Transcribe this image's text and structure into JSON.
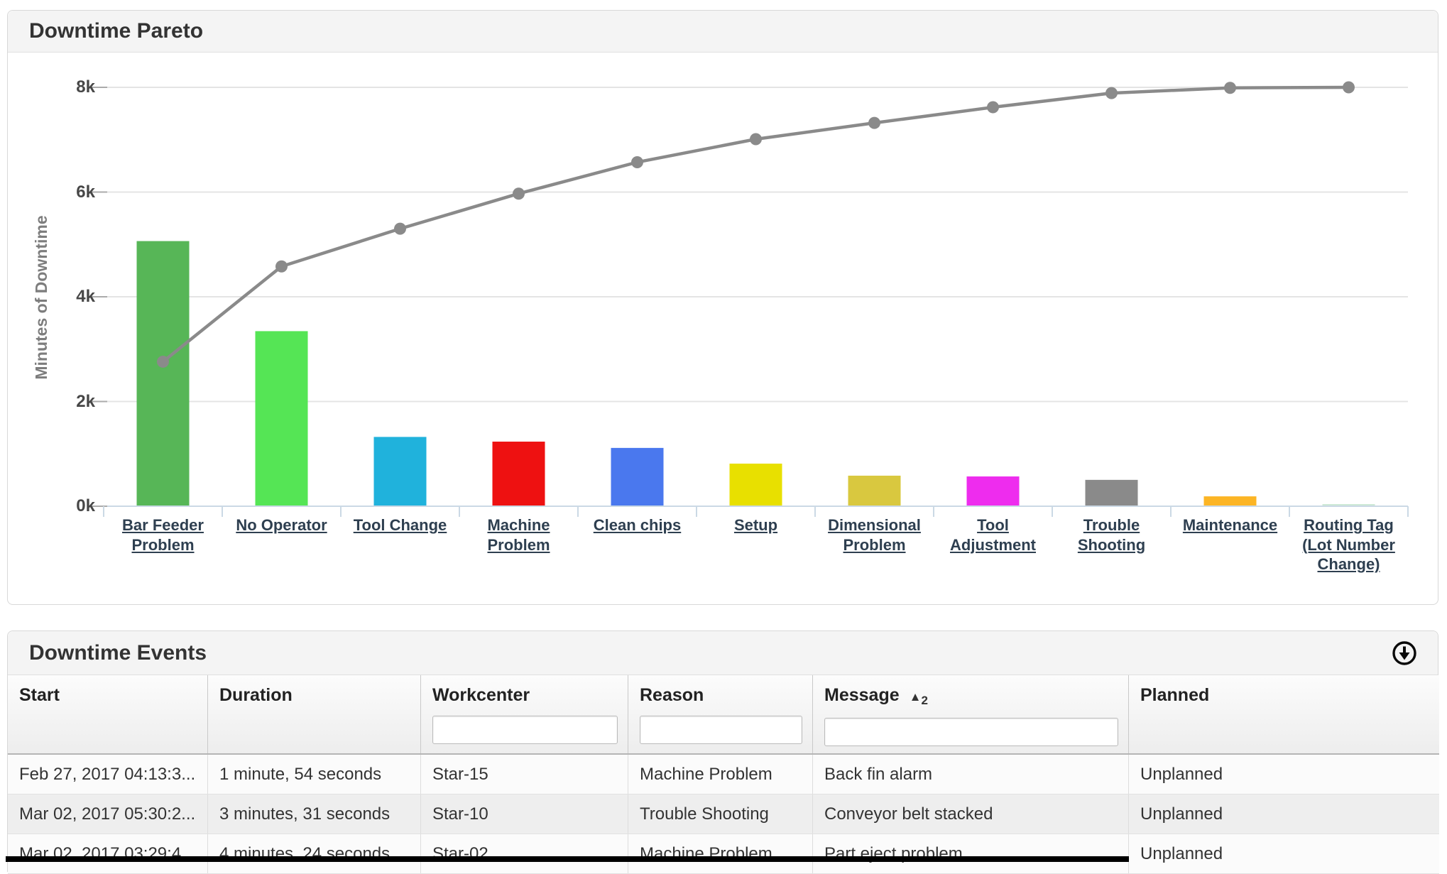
{
  "pareto": {
    "title": "Downtime Pareto",
    "y_axis_title": "Minutes of Downtime"
  },
  "chart_data": {
    "type": "pareto (column + cumulative line)",
    "title": "Downtime Pareto",
    "ylabel": "Minutes of Downtime",
    "ylim": [
      0,
      8400
    ],
    "grid": "horizontal",
    "legend": "none",
    "yticks": [
      {
        "label": "0k",
        "value": 0
      },
      {
        "label": "2k",
        "value": 2000
      },
      {
        "label": "4k",
        "value": 4000
      },
      {
        "label": "6k",
        "value": 6000
      },
      {
        "label": "8k",
        "value": 8000
      }
    ],
    "categories": [
      "Bar Feeder Problem",
      "No Operator",
      "Tool Change",
      "Machine Problem",
      "Clean chips",
      "Setup",
      "Dimensional Problem",
      "Tool Adjustment",
      "Trouble Shooting",
      "Maintenance",
      "Routing Tag (Lot Number Change)"
    ],
    "series": [
      {
        "name": "Minutes of Downtime",
        "type": "column",
        "values": [
          5050,
          3330,
          1310,
          1220,
          1100,
          800,
          570,
          555,
          490,
          175,
          25
        ],
        "colors": [
          "#57b657",
          "#55e555",
          "#20b2dc",
          "#ee1111",
          "#4a78ee",
          "#e8e000",
          "#d9c83f",
          "#ee2cee",
          "#8a8a8a",
          "#fcb525",
          "#cde9d5"
        ]
      },
      {
        "name": "Cumulative",
        "type": "line",
        "color": "#8a8a8a",
        "cumulative_pct": [
          34.5,
          57.3,
          66.3,
          74.6,
          82.1,
          87.6,
          91.5,
          95.3,
          98.6,
          99.8,
          100
        ],
        "axis_values": [
          2760,
          4580,
          5300,
          5970,
          6570,
          7010,
          7320,
          7620,
          7890,
          7990,
          8000
        ]
      }
    ]
  },
  "events": {
    "title": "Downtime Events",
    "export_icon": "circle-down-arrow-icon",
    "columns": [
      {
        "label": "Start",
        "filter": false
      },
      {
        "label": "Duration",
        "filter": false
      },
      {
        "label": "Workcenter",
        "filter": true,
        "filter_value": ""
      },
      {
        "label": "Reason",
        "filter": true,
        "filter_value": ""
      },
      {
        "label": "Message",
        "filter": true,
        "filter_value": "",
        "sort_indicator": "▲",
        "sort_priority": "2"
      },
      {
        "label": "Planned",
        "filter": false
      }
    ],
    "rows": [
      [
        "Feb 27, 2017 04:13:3...",
        "1 minute, 54 seconds",
        "Star-15",
        "Machine Problem",
        "Back fin alarm",
        "Unplanned"
      ],
      [
        "Mar 02, 2017 05:30:2...",
        "3 minutes, 31 seconds",
        "Star-10",
        "Trouble Shooting",
        "Conveyor belt stacked",
        "Unplanned"
      ],
      [
        "Mar 02, 2017 03:29:4...",
        "4 minutes, 24 seconds",
        "Star-02",
        "Machine Problem",
        "Part eject problem",
        "Unplanned"
      ]
    ]
  }
}
